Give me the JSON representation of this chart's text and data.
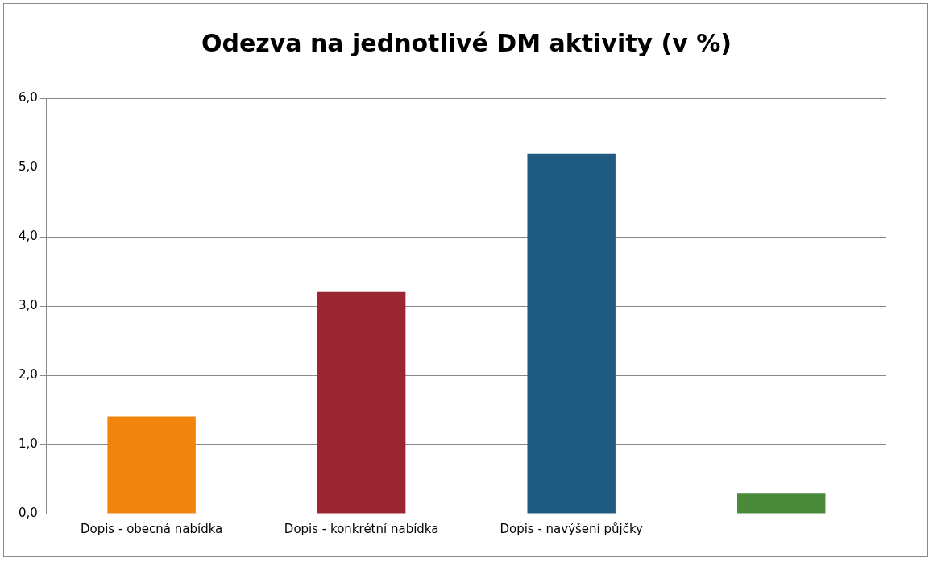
{
  "chart_data": {
    "type": "bar",
    "title": "Odezva na jednotlivé DM aktivity (v %)",
    "categories": [
      "Dopis - obecná nabídka",
      "Dopis - konkrétní nabídka",
      "Dopis - navýšení půjčky",
      null
    ],
    "values": [
      1.4,
      3.2,
      5.2,
      0.3
    ],
    "colors": [
      "#f0840c",
      "#9b2533",
      "#1f5a80",
      "#4a8a3a"
    ],
    "ylim": [
      0,
      6
    ],
    "yticks": [
      {
        "value": 0,
        "label": "0,0"
      },
      {
        "value": 1,
        "label": "1,0"
      },
      {
        "value": 2,
        "label": "2,0"
      },
      {
        "value": 3,
        "label": "3,0"
      },
      {
        "value": 4,
        "label": "4,0"
      },
      {
        "value": 5,
        "label": "5,0"
      },
      {
        "value": 6,
        "label": "6,0"
      }
    ],
    "grid": "y"
  }
}
